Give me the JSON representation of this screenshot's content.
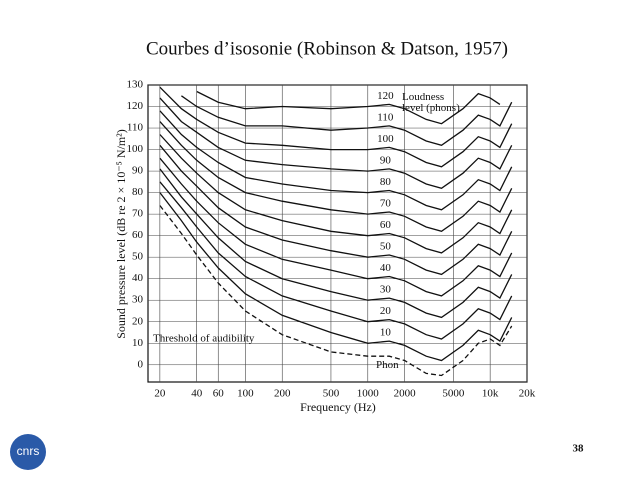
{
  "slide": {
    "page_number": "38",
    "logo_text": "cnrs"
  },
  "chart_data": {
    "type": "line",
    "title": "Courbes d’isosonie (Robinson & Datson, 1957)",
    "x_label": "Frequency (Hz)",
    "y_label": "Sound pressure level (dB re 2 × 10⁻⁵ N/m²)",
    "annotations": [
      "Loudness level (phons)",
      "Phon"
    ],
    "x_log": true,
    "grid": true,
    "xlim": [
      16,
      20000
    ],
    "xticks": [
      20,
      40,
      60,
      100,
      200,
      500,
      1000,
      2000,
      5000,
      {
        "value": 10000,
        "label": "10k"
      },
      {
        "value": 20000,
        "label": "20k"
      }
    ],
    "ylim": [
      -8,
      130
    ],
    "yticks": [
      0,
      10,
      20,
      30,
      40,
      50,
      60,
      70,
      80,
      90,
      100,
      110,
      120,
      130
    ],
    "x": [
      20,
      30,
      40,
      60,
      100,
      200,
      500,
      1000,
      1500,
      2000,
      3000,
      4000,
      6000,
      8000,
      10000,
      12000,
      15000
    ],
    "series": [
      {
        "name": "Threshold of audibility",
        "color": "#111",
        "dashed": true,
        "values": [
          74,
          61,
          51,
          38,
          25,
          14,
          6,
          4,
          4,
          2,
          -4,
          -5,
          2,
          10,
          12,
          9,
          18
        ]
      },
      {
        "name": "10",
        "color": "#111",
        "values": [
          80,
          67,
          57,
          45,
          33,
          23,
          15,
          10,
          11,
          9,
          4,
          2,
          9,
          16,
          14,
          11,
          22
        ]
      },
      {
        "name": "20",
        "color": "#111",
        "values": [
          85,
          73,
          64,
          52,
          41,
          32,
          25,
          20,
          21,
          19,
          14,
          12,
          19,
          26,
          24,
          21,
          32
        ]
      },
      {
        "name": "30",
        "color": "#111",
        "values": [
          91,
          78,
          70,
          59,
          48,
          40,
          34,
          30,
          31,
          29,
          24,
          22,
          29,
          36,
          34,
          31,
          42
        ]
      },
      {
        "name": "40",
        "color": "#111",
        "values": [
          96,
          84,
          76,
          66,
          56,
          49,
          44,
          40,
          41,
          39,
          34,
          32,
          39,
          46,
          44,
          41,
          52
        ]
      },
      {
        "name": "50",
        "color": "#111",
        "values": [
          102,
          90,
          83,
          73,
          64,
          58,
          53,
          50,
          51,
          49,
          44,
          42,
          49,
          56,
          54,
          51,
          62
        ]
      },
      {
        "name": "60",
        "color": "#111",
        "values": [
          107,
          96,
          89,
          80,
          72,
          67,
          62,
          60,
          61,
          59,
          54,
          52,
          59,
          66,
          64,
          61,
          72
        ]
      },
      {
        "name": "70",
        "color": "#111",
        "values": [
          113,
          102,
          95,
          87,
          80,
          76,
          72,
          70,
          71,
          69,
          64,
          62,
          69,
          76,
          74,
          71,
          82
        ]
      },
      {
        "name": "80",
        "color": "#111",
        "values": [
          118,
          107,
          101,
          94,
          87,
          84,
          81,
          80,
          81,
          79,
          74,
          72,
          79,
          86,
          84,
          81,
          92
        ]
      },
      {
        "name": "90",
        "color": "#111",
        "values": [
          124,
          113,
          108,
          101,
          95,
          93,
          91,
          90,
          91,
          89,
          84,
          82,
          89,
          96,
          94,
          91,
          102
        ]
      },
      {
        "name": "100",
        "color": "#111",
        "values": [
          129,
          119,
          114,
          108,
          103,
          102,
          100,
          100,
          101,
          99,
          94,
          92,
          99,
          106,
          104,
          101,
          112
        ]
      },
      {
        "name": "110",
        "color": "#111",
        "values": [
          null,
          125,
          120,
          115,
          111,
          111,
          109,
          110,
          111,
          109,
          104,
          102,
          109,
          116,
          114,
          111,
          122
        ]
      },
      {
        "name": "120",
        "color": "#111",
        "values": [
          null,
          null,
          127,
          122,
          119,
          120,
          119,
          120,
          121,
          119,
          114,
          112,
          119,
          126,
          124,
          121,
          null
        ]
      }
    ]
  }
}
